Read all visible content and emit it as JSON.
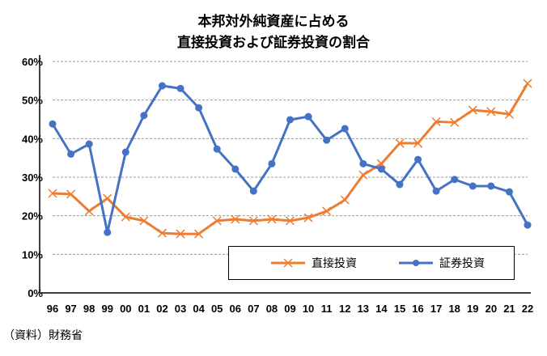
{
  "chart_data": {
    "type": "line",
    "title": [
      "本邦対外純資産に占める",
      "直接投資および証券投資の割合"
    ],
    "xlabel": "",
    "ylabel": "",
    "categories": [
      "96",
      "97",
      "98",
      "99",
      "00",
      "01",
      "02",
      "03",
      "04",
      "05",
      "06",
      "07",
      "08",
      "09",
      "10",
      "11",
      "12",
      "13",
      "14",
      "15",
      "16",
      "17",
      "18",
      "19",
      "20",
      "21",
      "22"
    ],
    "y_ticks": [
      "0%",
      "10%",
      "20%",
      "30%",
      "40%",
      "50%",
      "60%"
    ],
    "ylim": [
      0,
      60
    ],
    "grid": true,
    "legend_position": "bottom-right",
    "series": [
      {
        "name": "直接投資",
        "color": "#ED7D31",
        "marker": "x",
        "values": [
          25.8,
          25.6,
          21.2,
          24.5,
          19.7,
          18.7,
          15.5,
          15.3,
          15.3,
          18.7,
          19.1,
          18.7,
          19.1,
          18.7,
          19.5,
          21.2,
          24.1,
          30.6,
          33.5,
          38.8,
          38.8,
          44.4,
          44.2,
          47.4,
          47.0,
          46.3,
          54.3
        ]
      },
      {
        "name": "証券投資",
        "color": "#4472C4",
        "marker": "circle",
        "values": [
          43.8,
          36.0,
          38.6,
          15.7,
          36.5,
          46.0,
          53.7,
          53.0,
          48.0,
          37.3,
          32.1,
          26.4,
          33.5,
          44.9,
          45.7,
          39.6,
          42.6,
          33.5,
          32.1,
          28.1,
          34.6,
          26.4,
          29.4,
          27.7,
          27.7,
          26.2,
          17.6
        ]
      }
    ]
  },
  "source": "（資料）財務省"
}
